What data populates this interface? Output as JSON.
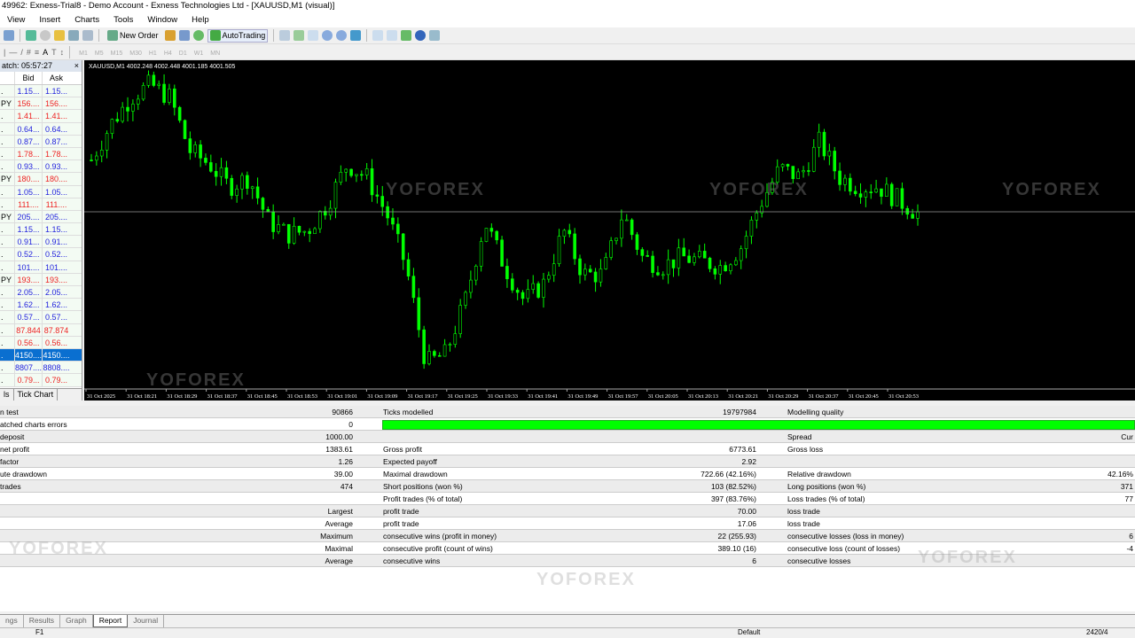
{
  "window": {
    "title": "49962: Exness-Trial8 - Demo Account - Exness Technologies Ltd - [XAUUSD,M1 (visual)]"
  },
  "menu": [
    "View",
    "Insert",
    "Charts",
    "Tools",
    "Window",
    "Help"
  ],
  "toolbar": {
    "new_order": "New Order",
    "autotrading": "AutoTrading",
    "timeframes": [
      "M1",
      "M5",
      "M15",
      "M30",
      "H1",
      "H4",
      "D1",
      "W1",
      "MN"
    ],
    "text_tool": "A"
  },
  "market_watch": {
    "title": "atch: 05:57:27",
    "close": "×",
    "col_bid": "Bid",
    "col_ask": "Ask",
    "rows": [
      {
        "s": ".",
        "bid": "1.15...",
        "ask": "1.15...",
        "dir": "up"
      },
      {
        "s": "PY",
        "bid": "156....",
        "ask": "156....",
        "dir": "dn"
      },
      {
        "s": ".",
        "bid": "1.41...",
        "ask": "1.41...",
        "dir": "dn"
      },
      {
        "s": ".",
        "bid": "0.64...",
        "ask": "0.64...",
        "dir": "up"
      },
      {
        "s": ".",
        "bid": "0.87...",
        "ask": "0.87...",
        "dir": "up"
      },
      {
        "s": ".",
        "bid": "1.78...",
        "ask": "1.78...",
        "dir": "dn"
      },
      {
        "s": ".",
        "bid": "0.93...",
        "ask": "0.93...",
        "dir": "up"
      },
      {
        "s": "PY",
        "bid": "180....",
        "ask": "180....",
        "dir": "dn"
      },
      {
        "s": ".",
        "bid": "1.05...",
        "ask": "1.05...",
        "dir": "up"
      },
      {
        "s": ".",
        "bid": "111....",
        "ask": "111....",
        "dir": "dn"
      },
      {
        "s": "PY",
        "bid": "205....",
        "ask": "205....",
        "dir": "up"
      },
      {
        "s": ".",
        "bid": "1.15...",
        "ask": "1.15...",
        "dir": "up"
      },
      {
        "s": ".",
        "bid": "0.91...",
        "ask": "0.91...",
        "dir": "up"
      },
      {
        "s": ".",
        "bid": "0.52...",
        "ask": "0.52...",
        "dir": "up"
      },
      {
        "s": ".",
        "bid": "101....",
        "ask": "101....",
        "dir": "up"
      },
      {
        "s": "PY",
        "bid": "193....",
        "ask": "193....",
        "dir": "dn"
      },
      {
        "s": ".",
        "bid": "2.05...",
        "ask": "2.05...",
        "dir": "up"
      },
      {
        "s": ".",
        "bid": "1.62...",
        "ask": "1.62...",
        "dir": "up"
      },
      {
        "s": ".",
        "bid": "0.57...",
        "ask": "0.57...",
        "dir": "up"
      },
      {
        "s": ".",
        "bid": "87.844",
        "ask": "87.874",
        "dir": "dn"
      },
      {
        "s": ".",
        "bid": "0.56...",
        "ask": "0.56...",
        "dir": "dn"
      },
      {
        "s": ".",
        "bid": "4150....",
        "ask": "4150....",
        "dir": "up",
        "selected": true
      },
      {
        "s": ".",
        "bid": "8807....",
        "ask": "8808....",
        "dir": "up"
      },
      {
        "s": ".",
        "bid": "0.79...",
        "ask": "0.79...",
        "dir": "dn"
      }
    ],
    "tabs": [
      "ls",
      "Tick Chart"
    ]
  },
  "chart_data": {
    "type": "candlestick",
    "symbol_line": "XAUUSD,M1  4002.248 4002.448 4001.185 4001.505",
    "last_price": 4001.505,
    "x_ticks": [
      "31 Oct 2025",
      "31 Oct 18:21",
      "31 Oct 18:29",
      "31 Oct 18:37",
      "31 Oct 18:45",
      "31 Oct 18:53",
      "31 Oct 19:01",
      "31 Oct 19:09",
      "31 Oct 19:17",
      "31 Oct 19:25",
      "31 Oct 19:33",
      "31 Oct 19:41",
      "31 Oct 19:49",
      "31 Oct 19:57",
      "31 Oct 20:05",
      "31 Oct 20:13",
      "31 Oct 20:21",
      "31 Oct 20:29",
      "31 Oct 20:37",
      "31 Oct 20:45",
      "31 Oct 20:53"
    ],
    "approx_closes": [
      4005.4,
      4008.1,
      4010.1,
      4011.1,
      4010.1,
      4006.1,
      4005.1,
      4003.4,
      4004.1,
      4000.8,
      3999.8,
      4000.1,
      4002.1,
      4005.1,
      4004.1,
      4001.4,
      3997.4,
      3990.1,
      3990.8,
      3994.8,
      4000.8,
      3997.4,
      3994.8,
      3996.1,
      4000.1,
      3996.8,
      3996.8,
      4001.4,
      3998.1,
      3997.4,
      3998.1,
      3997.8,
      3997.4,
      3998.8,
      4002.1,
      4004.8,
      4004.1,
      4006.8,
      4004.1,
      4003.4,
      4003.4,
      4002.4,
      4001.4
    ],
    "candle_color": "#00ff00",
    "background": "#000000",
    "grid": false
  },
  "watermark": "YOFOREX",
  "report": {
    "rows": [
      [
        "n test",
        "90866",
        "Ticks modelled",
        "19797984",
        "Modelling quality",
        ""
      ],
      [
        "atched charts errors",
        "0",
        "",
        "",
        "",
        ""
      ],
      [
        " deposit",
        "1000.00",
        "",
        "",
        "Spread",
        "Cur"
      ],
      [
        "net profit",
        "1383.61",
        "Gross profit",
        "6773.61",
        "Gross loss",
        ""
      ],
      [
        " factor",
        "1.26",
        "Expected payoff",
        "2.92",
        "",
        ""
      ],
      [
        "ute drawdown",
        "39.00",
        "Maximal drawdown",
        "722.66 (42.16%)",
        "Relative drawdown",
        "42.16%"
      ],
      [
        "trades",
        "474",
        "Short positions (won %)",
        "103 (82.52%)",
        "Long positions (won %)",
        "371"
      ],
      [
        "",
        "",
        "Profit trades (% of total)",
        "397 (83.76%)",
        "Loss trades (% of total)",
        "77"
      ],
      [
        "",
        "Largest",
        "profit trade",
        "70.00",
        "loss trade",
        ""
      ],
      [
        "",
        "Average",
        "profit trade",
        "17.06",
        "loss trade",
        ""
      ],
      [
        "",
        "Maximum",
        "consecutive wins (profit in money)",
        "22 (255.93)",
        "consecutive losses (loss in money)",
        "6"
      ],
      [
        "",
        "Maximal",
        "consecutive profit (count of wins)",
        "389.10 (16)",
        "consecutive loss (count of losses)",
        "-4"
      ],
      [
        "",
        "Average",
        "consecutive wins",
        "6",
        "consecutive losses",
        ""
      ]
    ],
    "modelling_quality_bar_percent": 100,
    "bar_color": "#00ff00"
  },
  "tabs": [
    "ngs",
    "Results",
    "Graph",
    "Report",
    "Journal"
  ],
  "active_tab": "Report",
  "status": {
    "left": "F1",
    "profile": "Default",
    "right": "2420/4"
  }
}
